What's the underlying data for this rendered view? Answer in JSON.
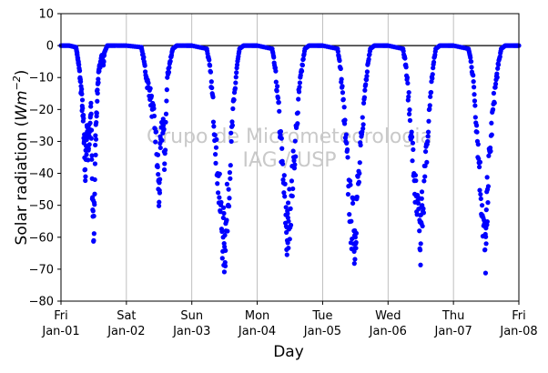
{
  "chart_data": {
    "type": "scatter",
    "title": "",
    "xlabel": "Day",
    "ylabel_prefix": "Solar radiation (",
    "ylabel_unit": "Wm",
    "ylabel_exp": "−2",
    "ylabel_suffix": ")",
    "ylim": [
      -80,
      10
    ],
    "yticks": [
      10,
      0,
      -10,
      -20,
      -30,
      -40,
      -50,
      -60,
      -70,
      -80
    ],
    "xlim": [
      "2019-01-01",
      "2019-01-08"
    ],
    "xticks": [
      {
        "day": "Fri",
        "date": "Jan-01"
      },
      {
        "day": "Sat",
        "date": "Jan-02"
      },
      {
        "day": "Sun",
        "date": "Jan-03"
      },
      {
        "day": "Mon",
        "date": "Jan-04"
      },
      {
        "day": "Tue",
        "date": "Jan-05"
      },
      {
        "day": "Wed",
        "date": "Jan-06"
      },
      {
        "day": "Thu",
        "date": "Jan-07"
      },
      {
        "day": "Fri",
        "date": "Jan-08"
      }
    ],
    "grid": "vertical",
    "zero_line": 0,
    "watermark": [
      "Grupo de Micrometeorologia",
      "IAG / USP"
    ],
    "marker_color": "#0000ff",
    "series": [
      {
        "points": [
          [
            "2019-01-01 00:00",
            0
          ],
          [
            "2019-01-01 03:00",
            0
          ],
          [
            "2019-01-01 05:30",
            -0.5
          ],
          [
            "2019-01-01 06:00",
            -3
          ],
          [
            "2019-01-01 06:30",
            -6
          ],
          [
            "2019-01-01 07:00",
            -10
          ],
          [
            "2019-01-01 07:30",
            -15
          ],
          [
            "2019-01-01 08:00",
            -22
          ],
          [
            "2019-01-01 08:30",
            -30
          ],
          [
            "2019-01-01 09:00",
            -41
          ],
          [
            "2019-01-01 09:30",
            -25
          ],
          [
            "2019-01-01 10:00",
            -32
          ],
          [
            "2019-01-01 10:30",
            -27
          ],
          [
            "2019-01-01 11:00",
            -18
          ],
          [
            "2019-01-01 11:30",
            -48
          ],
          [
            "2019-01-01 12:00",
            -61
          ],
          [
            "2019-01-01 12:30",
            -37
          ],
          [
            "2019-01-01 13:00",
            -21
          ],
          [
            "2019-01-01 13:30",
            -12
          ],
          [
            "2019-01-01 14:00",
            -8
          ],
          [
            "2019-01-01 14:30",
            -5
          ],
          [
            "2019-01-01 15:00",
            -3
          ],
          [
            "2019-01-01 15:30",
            -6
          ],
          [
            "2019-01-01 16:00",
            -2
          ],
          [
            "2019-01-01 17:00",
            0
          ],
          [
            "2019-01-01 20:00",
            0
          ],
          [
            "2019-01-02 00:00",
            0
          ],
          [
            "2019-01-02 05:30",
            -0.5
          ],
          [
            "2019-01-02 06:30",
            -5
          ],
          [
            "2019-01-02 07:30",
            -11
          ],
          [
            "2019-01-02 08:30",
            -14
          ],
          [
            "2019-01-02 09:30",
            -20
          ],
          [
            "2019-01-02 10:30",
            -26
          ],
          [
            "2019-01-02 11:30",
            -38
          ],
          [
            "2019-01-02 12:00",
            -49
          ],
          [
            "2019-01-02 12:30",
            -32
          ],
          [
            "2019-01-02 13:30",
            -23
          ],
          [
            "2019-01-02 14:00",
            -37
          ],
          [
            "2019-01-02 15:00",
            -10
          ],
          [
            "2019-01-02 16:00",
            -5
          ],
          [
            "2019-01-02 17:00",
            -1
          ],
          [
            "2019-01-02 18:30",
            0
          ],
          [
            "2019-01-02 22:00",
            0
          ],
          [
            "2019-01-03 00:00",
            0
          ],
          [
            "2019-01-03 05:30",
            -1
          ],
          [
            "2019-01-03 06:30",
            -6
          ],
          [
            "2019-01-03 07:30",
            -15
          ],
          [
            "2019-01-03 08:30",
            -28
          ],
          [
            "2019-01-03 09:30",
            -40
          ],
          [
            "2019-01-03 10:30",
            -52
          ],
          [
            "2019-01-03 11:30",
            -60
          ],
          [
            "2019-01-03 12:00",
            -63
          ],
          [
            "2019-01-03 12:30",
            -58
          ],
          [
            "2019-01-03 13:30",
            -45
          ],
          [
            "2019-01-03 14:30",
            -30
          ],
          [
            "2019-01-03 15:30",
            -17
          ],
          [
            "2019-01-03 16:30",
            -7
          ],
          [
            "2019-01-03 17:30",
            -1
          ],
          [
            "2019-01-03 19:00",
            0
          ],
          [
            "2019-01-03 22:00",
            0
          ],
          [
            "2019-01-04 00:00",
            0
          ],
          [
            "2019-01-04 05:30",
            -1
          ],
          [
            "2019-01-04 06:30",
            -7
          ],
          [
            "2019-01-04 07:30",
            -16
          ],
          [
            "2019-01-04 08:30",
            -28
          ],
          [
            "2019-01-04 09:30",
            -42
          ],
          [
            "2019-01-04 10:30",
            -53
          ],
          [
            "2019-01-04 11:00",
            -61
          ],
          [
            "2019-01-04 11:30",
            -55
          ],
          [
            "2019-01-04 12:30",
            -47
          ],
          [
            "2019-01-04 13:30",
            -36
          ],
          [
            "2019-01-04 14:30",
            -25
          ],
          [
            "2019-01-04 15:30",
            -13
          ],
          [
            "2019-01-04 16:30",
            -6
          ],
          [
            "2019-01-04 17:30",
            -1
          ],
          [
            "2019-01-04 19:00",
            0
          ],
          [
            "2019-01-04 22:00",
            0
          ],
          [
            "2019-01-05 00:00",
            0
          ],
          [
            "2019-01-05 05:30",
            -1
          ],
          [
            "2019-01-05 06:30",
            -7
          ],
          [
            "2019-01-05 07:30",
            -17
          ],
          [
            "2019-01-05 08:30",
            -30
          ],
          [
            "2019-01-05 09:30",
            -44
          ],
          [
            "2019-01-05 10:30",
            -55
          ],
          [
            "2019-01-05 11:30",
            -58
          ],
          [
            "2019-01-05 12:00",
            -60
          ],
          [
            "2019-01-05 12:30",
            -48
          ],
          [
            "2019-01-05 13:30",
            -40
          ],
          [
            "2019-01-05 14:30",
            -27
          ],
          [
            "2019-01-05 15:30",
            -14
          ],
          [
            "2019-01-05 16:30",
            -6
          ],
          [
            "2019-01-05 17:30",
            -1
          ],
          [
            "2019-01-05 19:00",
            0
          ],
          [
            "2019-01-05 22:00",
            0
          ],
          [
            "2019-01-06 00:00",
            0
          ],
          [
            "2019-01-06 05:30",
            -1
          ],
          [
            "2019-01-06 06:30",
            -6
          ],
          [
            "2019-01-06 07:30",
            -16
          ],
          [
            "2019-01-06 08:30",
            -28
          ],
          [
            "2019-01-06 09:30",
            -40
          ],
          [
            "2019-01-06 10:30",
            -52
          ],
          [
            "2019-01-06 11:30",
            -58
          ],
          [
            "2019-01-06 12:00",
            -62
          ],
          [
            "2019-01-06 12:30",
            -50
          ],
          [
            "2019-01-06 13:30",
            -41
          ],
          [
            "2019-01-06 14:30",
            -30
          ],
          [
            "2019-01-06 15:30",
            -16
          ],
          [
            "2019-01-06 16:30",
            -7
          ],
          [
            "2019-01-06 17:30",
            -1
          ],
          [
            "2019-01-06 19:00",
            0
          ],
          [
            "2019-01-06 22:00",
            0
          ],
          [
            "2019-01-07 00:00",
            0
          ],
          [
            "2019-01-07 05:30",
            -1
          ],
          [
            "2019-01-07 06:30",
            -5
          ],
          [
            "2019-01-07 07:30",
            -13
          ],
          [
            "2019-01-07 08:30",
            -25
          ],
          [
            "2019-01-07 09:30",
            -38
          ],
          [
            "2019-01-07 10:30",
            -50
          ],
          [
            "2019-01-07 11:30",
            -64
          ],
          [
            "2019-01-07 12:00",
            -62
          ],
          [
            "2019-01-07 12:30",
            -45
          ],
          [
            "2019-01-07 13:30",
            -32
          ],
          [
            "2019-01-07 14:30",
            -20
          ],
          [
            "2019-01-07 15:30",
            -12
          ],
          [
            "2019-01-07 16:30",
            -6
          ],
          [
            "2019-01-07 17:30",
            -1
          ],
          [
            "2019-01-07 19:00",
            0
          ],
          [
            "2019-01-07 22:00",
            0
          ],
          [
            "2019-01-08 00:00",
            0
          ]
        ]
      }
    ]
  }
}
